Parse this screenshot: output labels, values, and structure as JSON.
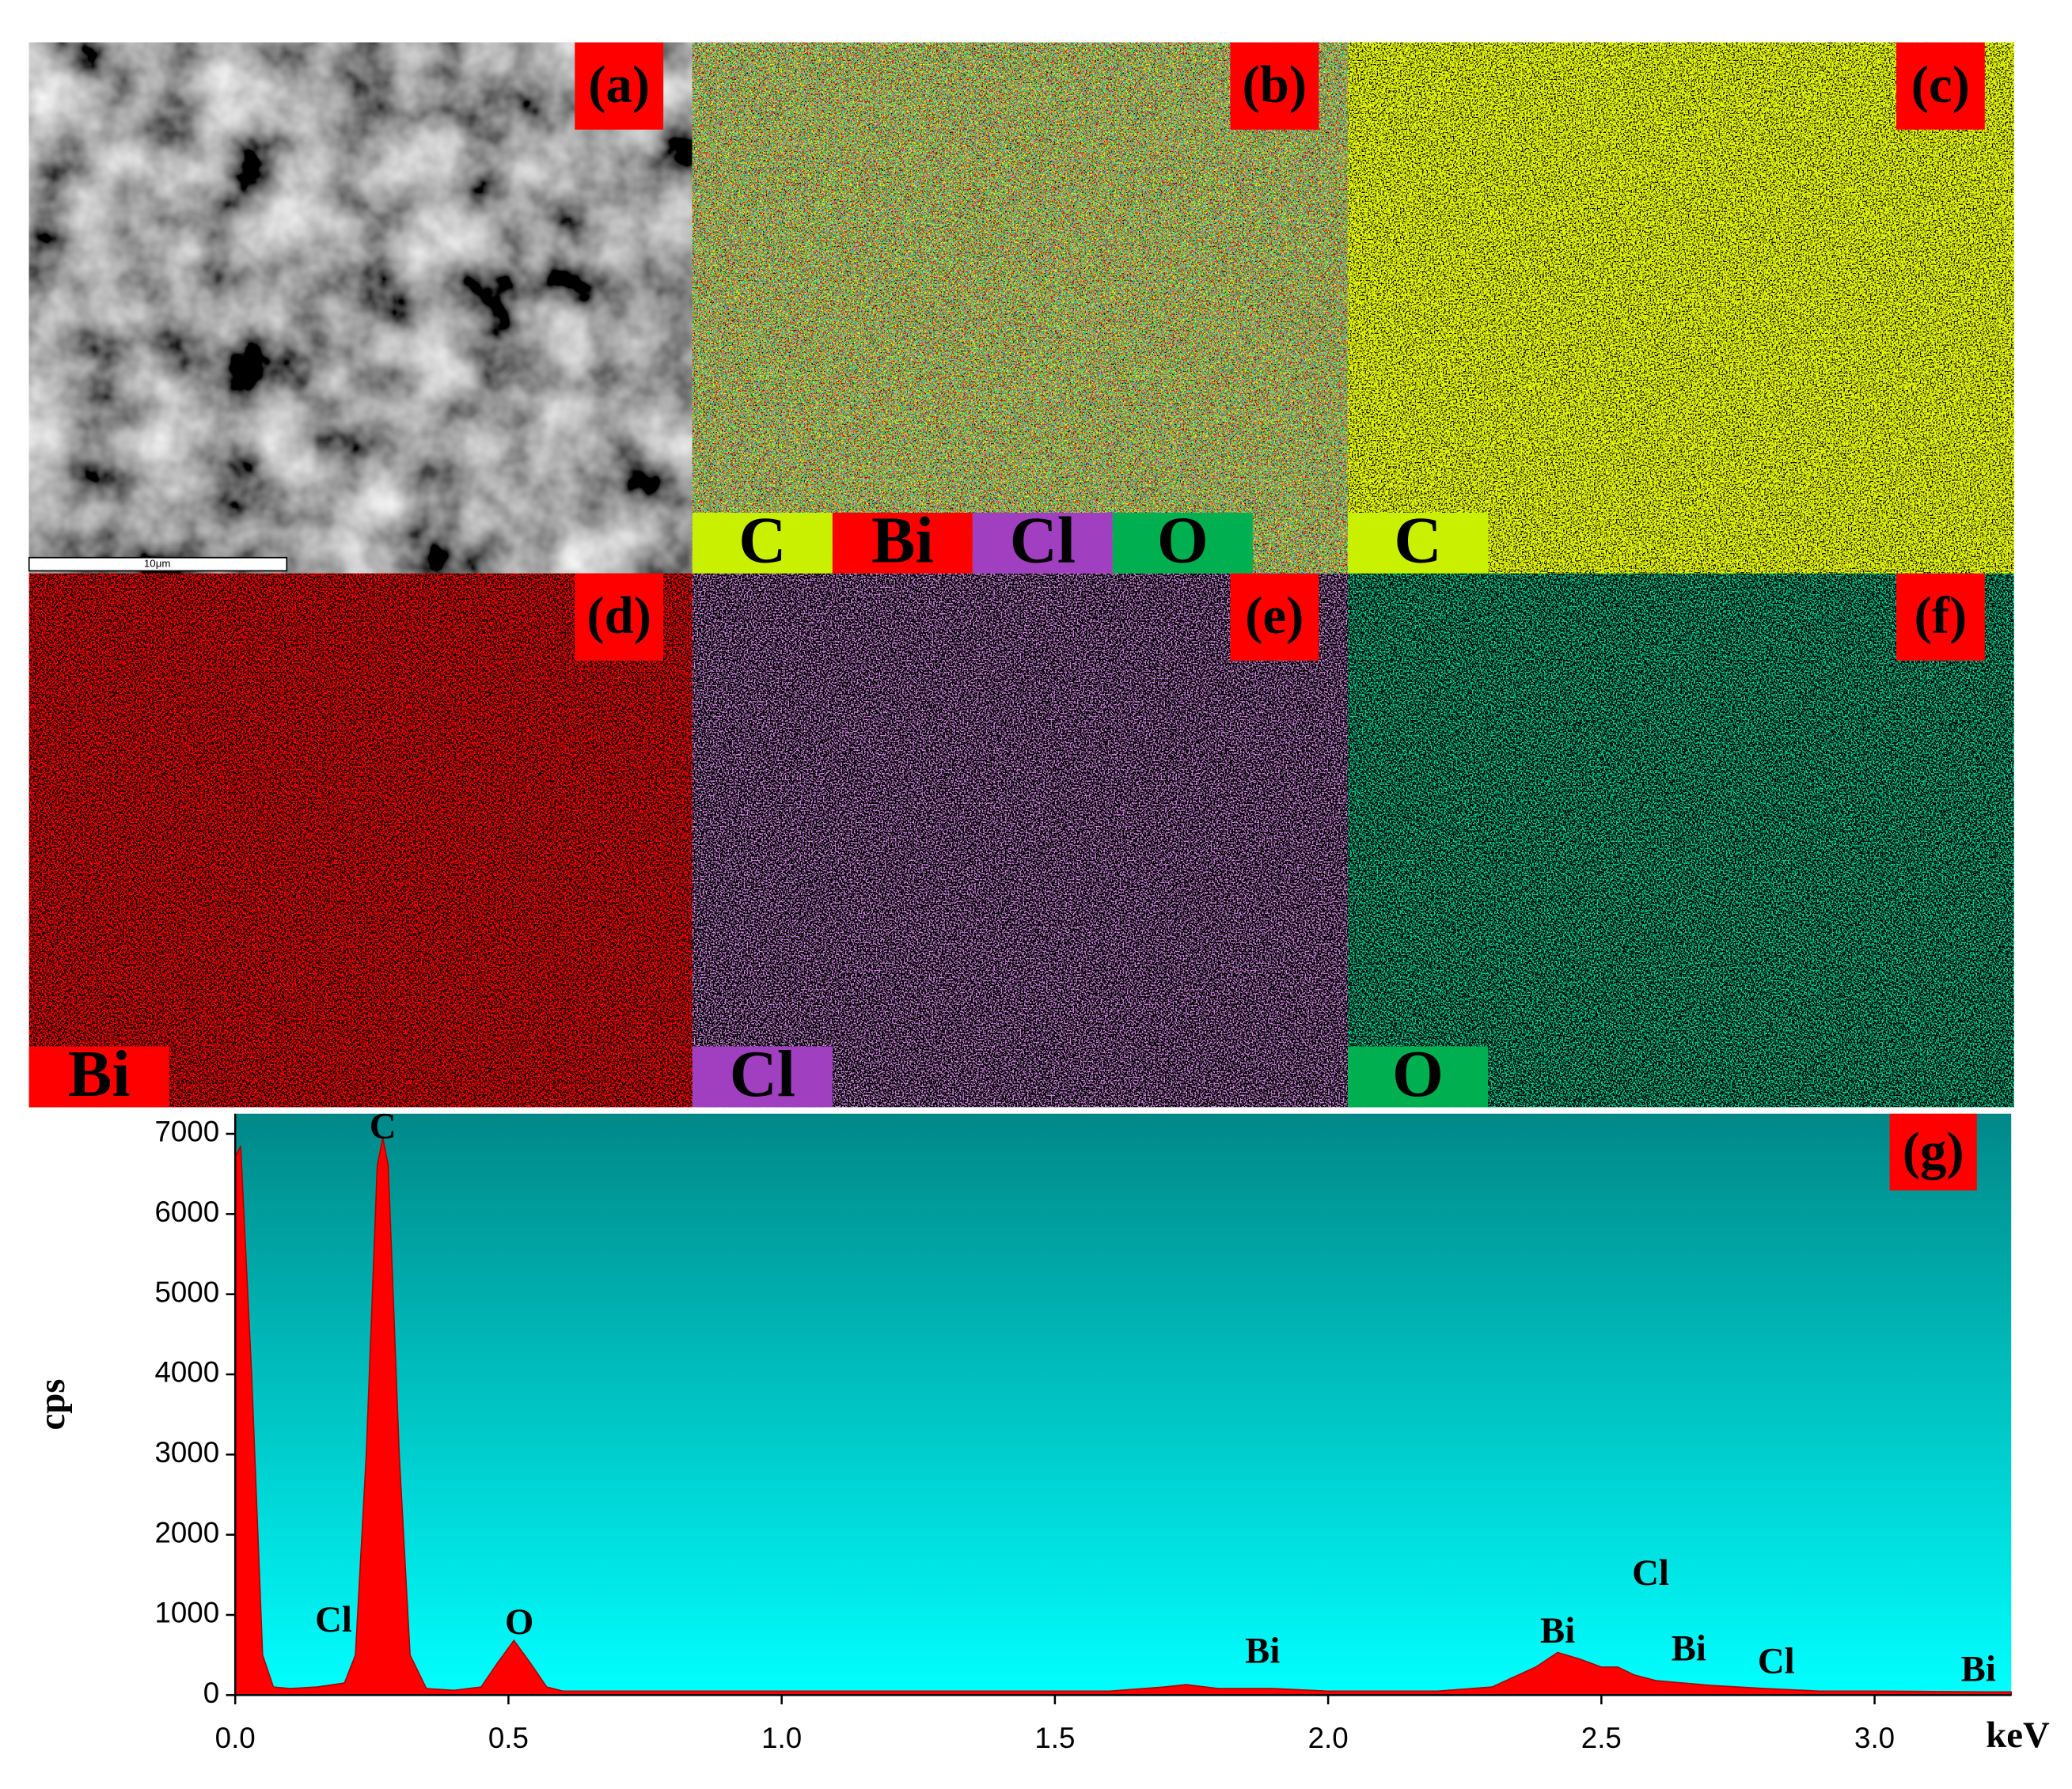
{
  "panels": [
    {
      "label": "(a)",
      "scale_bar": "10μm"
    },
    {
      "label": "(b)",
      "elements": [
        {
          "name": "C",
          "color": "#c8f000"
        },
        {
          "name": "Bi",
          "color": "#ff0000"
        },
        {
          "name": "Cl",
          "color": "#a040c0"
        },
        {
          "name": "O",
          "color": "#00b050"
        }
      ]
    },
    {
      "label": "(c)",
      "elements": [
        {
          "name": "C",
          "color": "#c8f000"
        }
      ]
    },
    {
      "label": "(d)",
      "elements": [
        {
          "name": "Bi",
          "color": "#ff0000"
        }
      ]
    },
    {
      "label": "(e)",
      "elements": [
        {
          "name": "Cl",
          "color": "#a040c0"
        }
      ]
    },
    {
      "label": "(f)",
      "elements": [
        {
          "name": "O",
          "color": "#00b050"
        }
      ]
    }
  ],
  "chart_data": {
    "type": "area",
    "panel_label": "(g)",
    "xlabel": "keV",
    "ylabel": "cps",
    "color": "#ff0000",
    "x": [
      0.0,
      0.01,
      0.03,
      0.05,
      0.07,
      0.1,
      0.15,
      0.2,
      0.22,
      0.24,
      0.26,
      0.27,
      0.28,
      0.3,
      0.32,
      0.35,
      0.4,
      0.45,
      0.48,
      0.51,
      0.54,
      0.57,
      0.6,
      0.8,
      1.0,
      1.2,
      1.4,
      1.6,
      1.7,
      1.74,
      1.8,
      1.9,
      2.0,
      2.2,
      2.3,
      2.38,
      2.42,
      2.46,
      2.5,
      2.53,
      2.56,
      2.6,
      2.7,
      2.8,
      2.9,
      3.0,
      3.2,
      3.25
    ],
    "values": [
      6700,
      6850,
      4000,
      500,
      100,
      80,
      100,
      150,
      500,
      3000,
      6600,
      6950,
      6600,
      3000,
      500,
      80,
      60,
      100,
      400,
      680,
      400,
      100,
      50,
      50,
      50,
      50,
      50,
      50,
      100,
      130,
      80,
      80,
      50,
      50,
      100,
      350,
      530,
      450,
      350,
      350,
      250,
      180,
      120,
      80,
      50,
      50,
      40,
      40
    ],
    "xlim": [
      0,
      3.25
    ],
    "ylim": [
      0,
      7250
    ],
    "xticks": [
      {
        "value": 0,
        "label": "0.0"
      },
      0.5,
      {
        "value": 1,
        "label": "1.0"
      },
      1.5,
      {
        "value": 2,
        "label": "2.0"
      },
      2.5,
      {
        "value": 3,
        "label": "3.0"
      }
    ],
    "yticks": [
      0,
      1000,
      2000,
      3000,
      4000,
      5000,
      6000,
      7000
    ],
    "annotations": [
      {
        "text": "C",
        "x": 0.27,
        "y": 7050
      },
      {
        "text": "Cl",
        "x": 0.18,
        "y": 900
      },
      {
        "text": "O",
        "x": 0.52,
        "y": 870
      },
      {
        "text": "Bi",
        "x": 1.88,
        "y": 510
      },
      {
        "text": "Bi",
        "x": 2.42,
        "y": 760
      },
      {
        "text": "Cl",
        "x": 2.59,
        "y": 1480
      },
      {
        "text": "Bi",
        "x": 2.66,
        "y": 540
      },
      {
        "text": "Cl",
        "x": 2.82,
        "y": 380
      },
      {
        "text": "Bi",
        "x": 3.19,
        "y": 280
      }
    ]
  }
}
